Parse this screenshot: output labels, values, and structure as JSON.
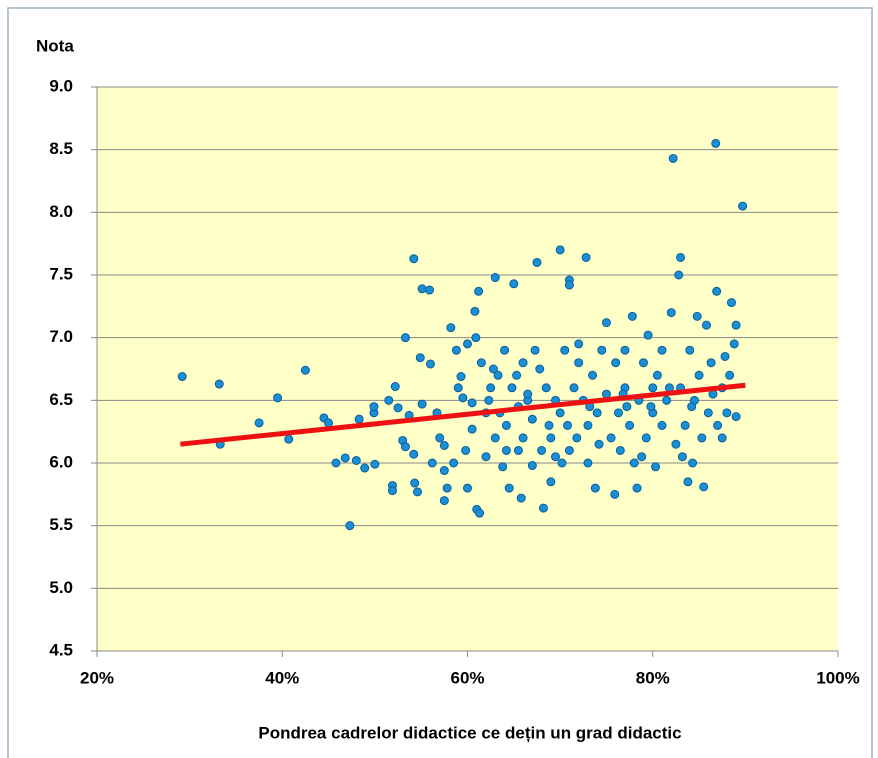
{
  "chart_data": {
    "type": "scatter",
    "x_label": "Pondrea cadrelor didactice ce dețin un grad didactic",
    "y_label": "Nota",
    "x": [
      29.2,
      33.2,
      33.3,
      37.5,
      39.5,
      40.7,
      42.5,
      44.5,
      45,
      45.8,
      46.8,
      47.3,
      48,
      48.3,
      48.9,
      49.9,
      49.9,
      50,
      51.5,
      51.9,
      51.9,
      52.2,
      52.5,
      53,
      53.3,
      53.3,
      53.7,
      54.2,
      54.2,
      54.3,
      54.6,
      54.9,
      55.1,
      55.1,
      55.9,
      56,
      56.2,
      56.7,
      57,
      57.5,
      57.5,
      57.5,
      57.8,
      58.2,
      58.5,
      58.8,
      59,
      59.3,
      59.5,
      60,
      60,
      60.5,
      60.5,
      60.8,
      60.9,
      61,
      61.2,
      61.3,
      61.5,
      62,
      62,
      62.5,
      62.8,
      63,
      63,
      63.3,
      63.5,
      63.8,
      64,
      64.2,
      64.5,
      64.8,
      65,
      65.3,
      65.5,
      65.8,
      66,
      66,
      66.5,
      67,
      67,
      67.3,
      67.5,
      67.8,
      68,
      68.2,
      68.5,
      69,
      69,
      69.5,
      70,
      70,
      70.2,
      70.5,
      71,
      71,
      71,
      71.5,
      71.8,
      72,
      72,
      72.5,
      72.8,
      73,
      73,
      73.5,
      73.8,
      74,
      74.5,
      75,
      75,
      75.5,
      75.9,
      76,
      76.3,
      76.5,
      77,
      77,
      77.5,
      77.8,
      78,
      78.3,
      78.5,
      79,
      79.3,
      79.5,
      80,
      80,
      80.3,
      80.5,
      81,
      81,
      81.5,
      82,
      82.2,
      82.5,
      82.8,
      83,
      83,
      83.5,
      83.8,
      84,
      84.3,
      84.5,
      84.8,
      85,
      85.3,
      85.5,
      85.8,
      86,
      86.3,
      86.8,
      86.9,
      87,
      87.5,
      87.8,
      88,
      88.3,
      88.5,
      88.8,
      89,
      89,
      89.7,
      66.5,
      68.8,
      74.2,
      76.8,
      79.8,
      62.3,
      65.5,
      70.8,
      73.2,
      77.2,
      81.8,
      84.2,
      86.5,
      59.8,
      64.2,
      69.5,
      78.8,
      83.2,
      87.5
    ],
    "values": [
      6.69,
      6.63,
      6.15,
      6.32,
      6.52,
      6.19,
      6.74,
      6.36,
      6.32,
      6.0,
      6.04,
      5.5,
      6.02,
      6.35,
      5.96,
      6.4,
      6.45,
      5.99,
      6.5,
      5.82,
      5.78,
      6.61,
      6.44,
      6.18,
      7.0,
      6.13,
      6.38,
      7.63,
      6.07,
      5.84,
      5.77,
      6.84,
      7.39,
      6.47,
      7.38,
      6.79,
      6.0,
      6.4,
      6.2,
      6.14,
      5.94,
      5.7,
      5.8,
      7.08,
      6.0,
      6.9,
      6.6,
      6.69,
      6.52,
      6.95,
      5.8,
      6.48,
      6.27,
      7.21,
      7.0,
      5.63,
      7.37,
      5.6,
      6.8,
      6.4,
      6.05,
      6.6,
      6.75,
      7.48,
      6.2,
      6.7,
      6.4,
      5.97,
      6.9,
      6.3,
      5.8,
      6.6,
      7.43,
      6.7,
      6.1,
      5.72,
      6.8,
      6.2,
      6.5,
      6.35,
      5.98,
      6.9,
      7.6,
      6.75,
      6.1,
      5.64,
      6.6,
      6.2,
      5.85,
      6.5,
      7.7,
      6.4,
      6.0,
      6.9,
      7.46,
      7.42,
      6.1,
      6.6,
      6.2,
      6.95,
      6.8,
      6.5,
      7.64,
      6.3,
      6.0,
      6.7,
      5.8,
      6.4,
      6.9,
      7.12,
      6.55,
      6.2,
      5.75,
      6.8,
      6.4,
      6.1,
      6.9,
      6.6,
      6.3,
      7.17,
      6.0,
      5.8,
      6.5,
      6.8,
      6.2,
      7.02,
      6.6,
      6.4,
      5.97,
      6.7,
      6.3,
      6.9,
      6.5,
      7.2,
      8.43,
      6.15,
      7.5,
      7.64,
      6.6,
      6.3,
      5.85,
      6.9,
      6.0,
      6.5,
      7.17,
      6.7,
      6.2,
      5.81,
      7.1,
      6.4,
      6.8,
      8.55,
      7.37,
      6.3,
      6.6,
      6.85,
      6.4,
      6.7,
      7.28,
      6.95,
      7.1,
      6.37,
      8.05,
      6.55,
      6.3,
      6.15,
      6.55,
      6.45,
      6.5,
      6.45,
      6.3,
      6.45,
      6.45,
      6.6,
      6.45,
      6.55,
      6.1,
      6.1,
      6.05,
      6.05,
      6.05,
      6.2
    ],
    "color": "#1a8fd6",
    "trendline": {
      "x": [
        29,
        90
      ],
      "values": [
        6.15,
        6.62
      ],
      "color": "#ee1111"
    },
    "xlim": [
      20,
      100
    ],
    "xticks": [
      {
        "value": 20,
        "label": "20%"
      },
      {
        "value": 40,
        "label": "40%"
      },
      {
        "value": 60,
        "label": "60%"
      },
      {
        "value": 80,
        "label": "80%"
      },
      {
        "value": 100,
        "label": "100%"
      }
    ],
    "ylim": [
      4.5,
      9
    ],
    "yticks": [
      {
        "value": 4.5,
        "label": "4.5"
      },
      {
        "value": 5,
        "label": "5.0"
      },
      {
        "value": 5.5,
        "label": "5.5"
      },
      {
        "value": 6,
        "label": "6.0"
      },
      {
        "value": 6.5,
        "label": "6.5"
      },
      {
        "value": 7,
        "label": "7.0"
      },
      {
        "value": 7.5,
        "label": "7.5"
      },
      {
        "value": 8,
        "label": "8.0"
      },
      {
        "value": 8.5,
        "label": "8.5"
      },
      {
        "value": 9,
        "label": "9.0"
      }
    ],
    "grid": true,
    "background": "#ffffc8"
  }
}
